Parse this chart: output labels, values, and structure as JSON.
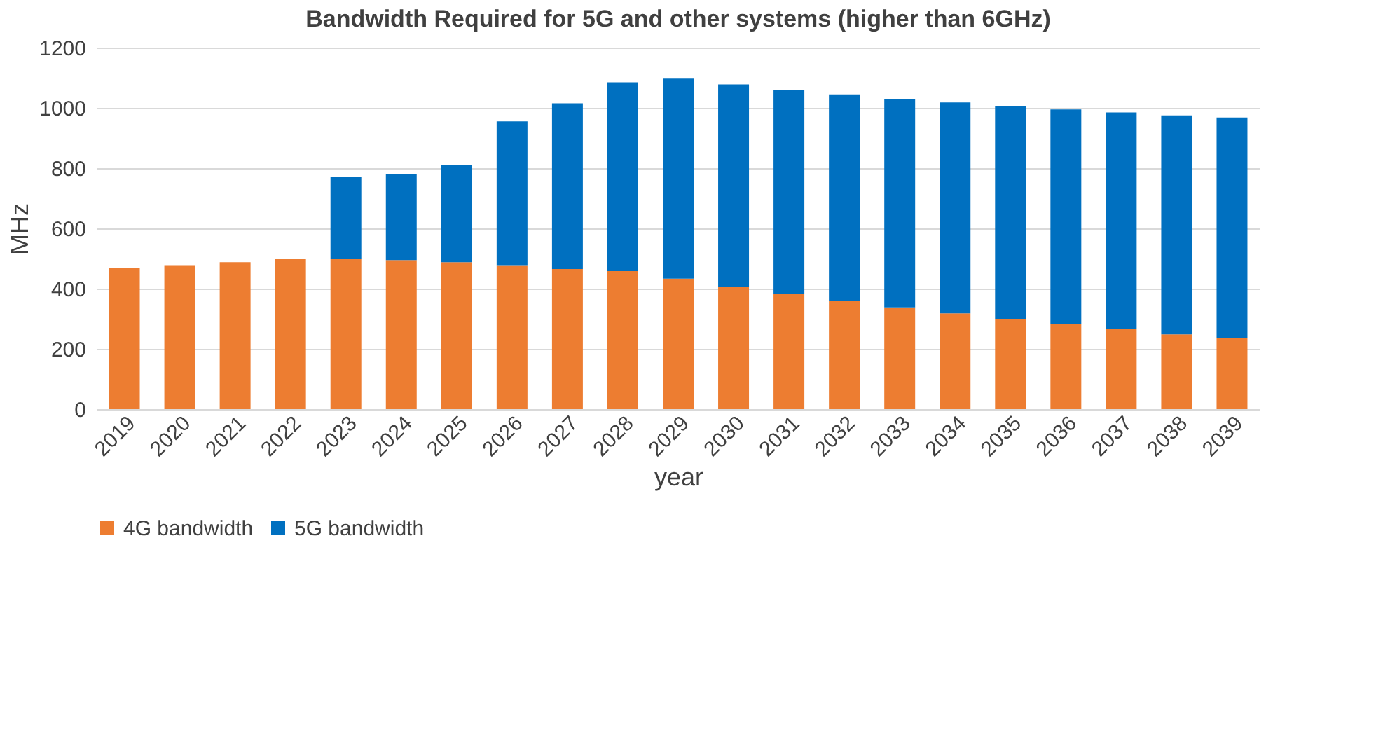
{
  "chart_data": {
    "type": "bar",
    "title": "Bandwidth Required for 5G and other systems (higher than 6GHz)",
    "xlabel": "year",
    "ylabel": "MHz",
    "categories": [
      "2019",
      "2020",
      "2021",
      "2022",
      "2023",
      "2024",
      "2025",
      "2026",
      "2027",
      "2028",
      "2029",
      "2030",
      "2031",
      "2032",
      "2033",
      "2034",
      "2035",
      "2036",
      "2037",
      "2038",
      "2039"
    ],
    "stacked": true,
    "series": [
      {
        "name": "4G bandwidth",
        "color": "#ed7d31",
        "values": [
          470,
          478,
          488,
          498,
          498,
          495,
          488,
          478,
          465,
          458,
          433,
          405,
          383,
          358,
          338,
          318,
          300,
          282,
          265,
          248,
          235
        ]
      },
      {
        "name": "5G bandwidth",
        "color": "#0070c0",
        "values": [
          null,
          null,
          null,
          null,
          272,
          285,
          322,
          477,
          550,
          627,
          664,
          673,
          677,
          687,
          692,
          700,
          705,
          713,
          720,
          727,
          733
        ]
      }
    ],
    "ylim": [
      0,
      1200
    ],
    "yticks": [
      0,
      200,
      400,
      600,
      800,
      1000,
      1200
    ],
    "grid": "y",
    "legend": "bottom"
  }
}
